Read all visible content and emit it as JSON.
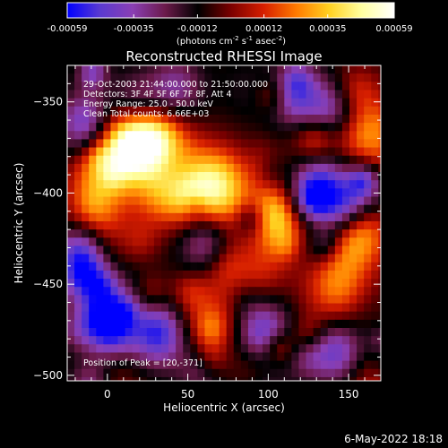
{
  "colorbar": {
    "ticks": [
      "-0.00059",
      "-0.00035",
      "-0.00012",
      "0.00012",
      "0.00035",
      "0.00059"
    ],
    "range": [
      -0.00059,
      0.00059
    ],
    "unit_parts": [
      "(photons cm",
      "-2",
      " s",
      "-1",
      " asec",
      "-2",
      ")"
    ],
    "colors": [
      "#0000ff",
      "#5a3ad0",
      "#8a3fb4",
      "#6b1a4a",
      "#000000",
      "#7a0000",
      "#d61e00",
      "#ff7a00",
      "#ffd020",
      "#ffffa0",
      "#ffffff"
    ]
  },
  "annotations": {
    "time": "29-Oct-2003 21:44:00.000 to 21:50:00.000",
    "detectors": "Detectors: 3F 4F 5F 6F 7F 8F, Att 4",
    "energy": "Energy Range: 25.0 - 50.0 keV",
    "clean": "Clean     Total counts: 6.66E+03",
    "peak": "Position of Peak = [20,-371]"
  },
  "footer": {
    "date": "6-May-2022 18:18"
  },
  "chart_data": {
    "type": "heatmap",
    "title": "Reconstructed RHESSI Image",
    "xlabel": "Heliocentric X (arcsec)",
    "ylabel": "Heliocentric Y (arcsec)",
    "xlim": [
      -25,
      170
    ],
    "ylim": [
      -503,
      -330
    ],
    "xticks": [
      0,
      50,
      100,
      150
    ],
    "yticks": [
      -350,
      -400,
      -450,
      -500
    ],
    "colorbar_range": [
      -0.00059,
      0.00059
    ],
    "peak_position": [
      20,
      -371
    ],
    "bright_sources": [
      {
        "x": 20,
        "y": -371,
        "value": 0.00059
      },
      {
        "x": 65,
        "y": -393,
        "value": 0.0005
      },
      {
        "x": 35,
        "y": -395,
        "value": 0.0004
      },
      {
        "x": 5,
        "y": -372,
        "value": 0.00035
      },
      {
        "x": -10,
        "y": -410,
        "value": 0.0003
      },
      {
        "x": 100,
        "y": -420,
        "value": 0.00025
      },
      {
        "x": 150,
        "y": -420,
        "value": 0.0004
      },
      {
        "x": 160,
        "y": -365,
        "value": 0.00038
      },
      {
        "x": 140,
        "y": -450,
        "value": 0.0003
      },
      {
        "x": 80,
        "y": -445,
        "value": 0.00025
      },
      {
        "x": 60,
        "y": -470,
        "value": 0.0002
      }
    ],
    "dark_sources": [
      {
        "x": -15,
        "y": -360,
        "value": -0.0004
      },
      {
        "x": 0,
        "y": -470,
        "value": -0.00045
      },
      {
        "x": 30,
        "y": -475,
        "value": -0.00045
      },
      {
        "x": 95,
        "y": -475,
        "value": -0.0004
      },
      {
        "x": 130,
        "y": -395,
        "value": -0.00045
      },
      {
        "x": 140,
        "y": -355,
        "value": -0.0004
      },
      {
        "x": 115,
        "y": -345,
        "value": -0.00035
      },
      {
        "x": 140,
        "y": -485,
        "value": -0.00035
      },
      {
        "x": 60,
        "y": -425,
        "value": -0.0003
      },
      {
        "x": 40,
        "y": -340,
        "value": -0.00025
      },
      {
        "x": 155,
        "y": -400,
        "value": -0.0003
      }
    ]
  }
}
